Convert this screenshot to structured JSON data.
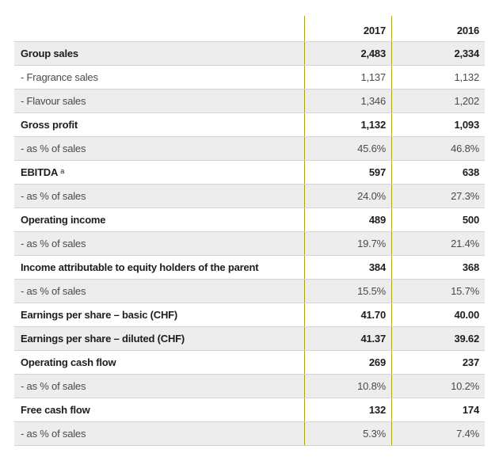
{
  "table": {
    "columns": [
      {
        "label": "2017"
      },
      {
        "label": "2016"
      }
    ],
    "colors": {
      "accent_line": "#a2a613",
      "row_shade": "#ededed",
      "row_border": "#d4d4d4",
      "bold_text": "#1d1d1b",
      "regular_text": "#4a4a49"
    },
    "rows": [
      {
        "label": "Group sales",
        "sup": "",
        "v2017": "2,483",
        "v2016": "2,334",
        "bold": true,
        "shaded": true
      },
      {
        "label": "- Fragrance sales",
        "sup": "",
        "v2017": "1,137",
        "v2016": "1,132",
        "bold": false,
        "shaded": false
      },
      {
        "label": "- Flavour sales",
        "sup": "",
        "v2017": "1,346",
        "v2016": "1,202",
        "bold": false,
        "shaded": true
      },
      {
        "label": "Gross profit",
        "sup": "",
        "v2017": "1,132",
        "v2016": "1,093",
        "bold": true,
        "shaded": false
      },
      {
        "label": "- as % of sales",
        "sup": "",
        "v2017": "45.6%",
        "v2016": "46.8%",
        "bold": false,
        "shaded": true
      },
      {
        "label": "EBITDA",
        "sup": "a",
        "v2017": "597",
        "v2016": "638",
        "bold": true,
        "shaded": false
      },
      {
        "label": "- as % of sales",
        "sup": "",
        "v2017": "24.0%",
        "v2016": "27.3%",
        "bold": false,
        "shaded": true
      },
      {
        "label": "Operating income",
        "sup": "",
        "v2017": "489",
        "v2016": "500",
        "bold": true,
        "shaded": false
      },
      {
        "label": "- as % of sales",
        "sup": "",
        "v2017": "19.7%",
        "v2016": "21.4%",
        "bold": false,
        "shaded": true
      },
      {
        "label": "Income attributable to equity holders of the parent",
        "sup": "",
        "v2017": "384",
        "v2016": "368",
        "bold": true,
        "shaded": false
      },
      {
        "label": "- as % of sales",
        "sup": "",
        "v2017": "15.5%",
        "v2016": "15.7%",
        "bold": false,
        "shaded": true
      },
      {
        "label": "Earnings per share – basic (CHF)",
        "sup": "",
        "v2017": "41.70",
        "v2016": "40.00",
        "bold": true,
        "shaded": false
      },
      {
        "label": "Earnings per share – diluted (CHF)",
        "sup": "",
        "v2017": "41.37",
        "v2016": "39.62",
        "bold": true,
        "shaded": true
      },
      {
        "label": "Operating cash flow",
        "sup": "",
        "v2017": "269",
        "v2016": "237",
        "bold": true,
        "shaded": false
      },
      {
        "label": "- as % of sales",
        "sup": "",
        "v2017": "10.8%",
        "v2016": "10.2%",
        "bold": false,
        "shaded": true
      },
      {
        "label": "Free cash flow",
        "sup": "",
        "v2017": "132",
        "v2016": "174",
        "bold": true,
        "shaded": false
      },
      {
        "label": "- as % of sales",
        "sup": "",
        "v2017": "5.3%",
        "v2016": "7.4%",
        "bold": false,
        "shaded": true
      }
    ]
  }
}
